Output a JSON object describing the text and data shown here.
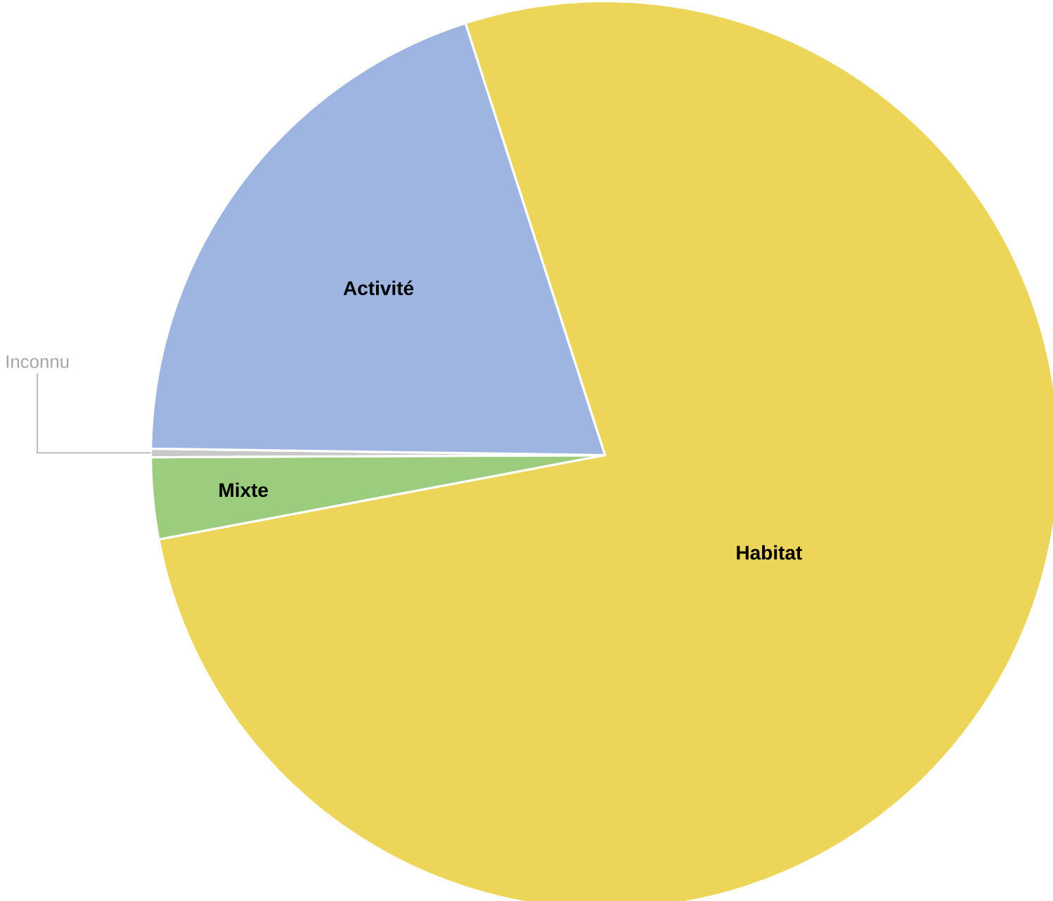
{
  "chart_data": {
    "type": "pie",
    "categories": [
      "Habitat",
      "Mixte",
      "Inconnu",
      "Activité"
    ],
    "values": [
      77.0,
      2.9,
      0.3,
      19.8
    ],
    "colors": [
      "#ecd558",
      "#9ccc7e",
      "#c8c8c8",
      "#9db5e0"
    ]
  }
}
